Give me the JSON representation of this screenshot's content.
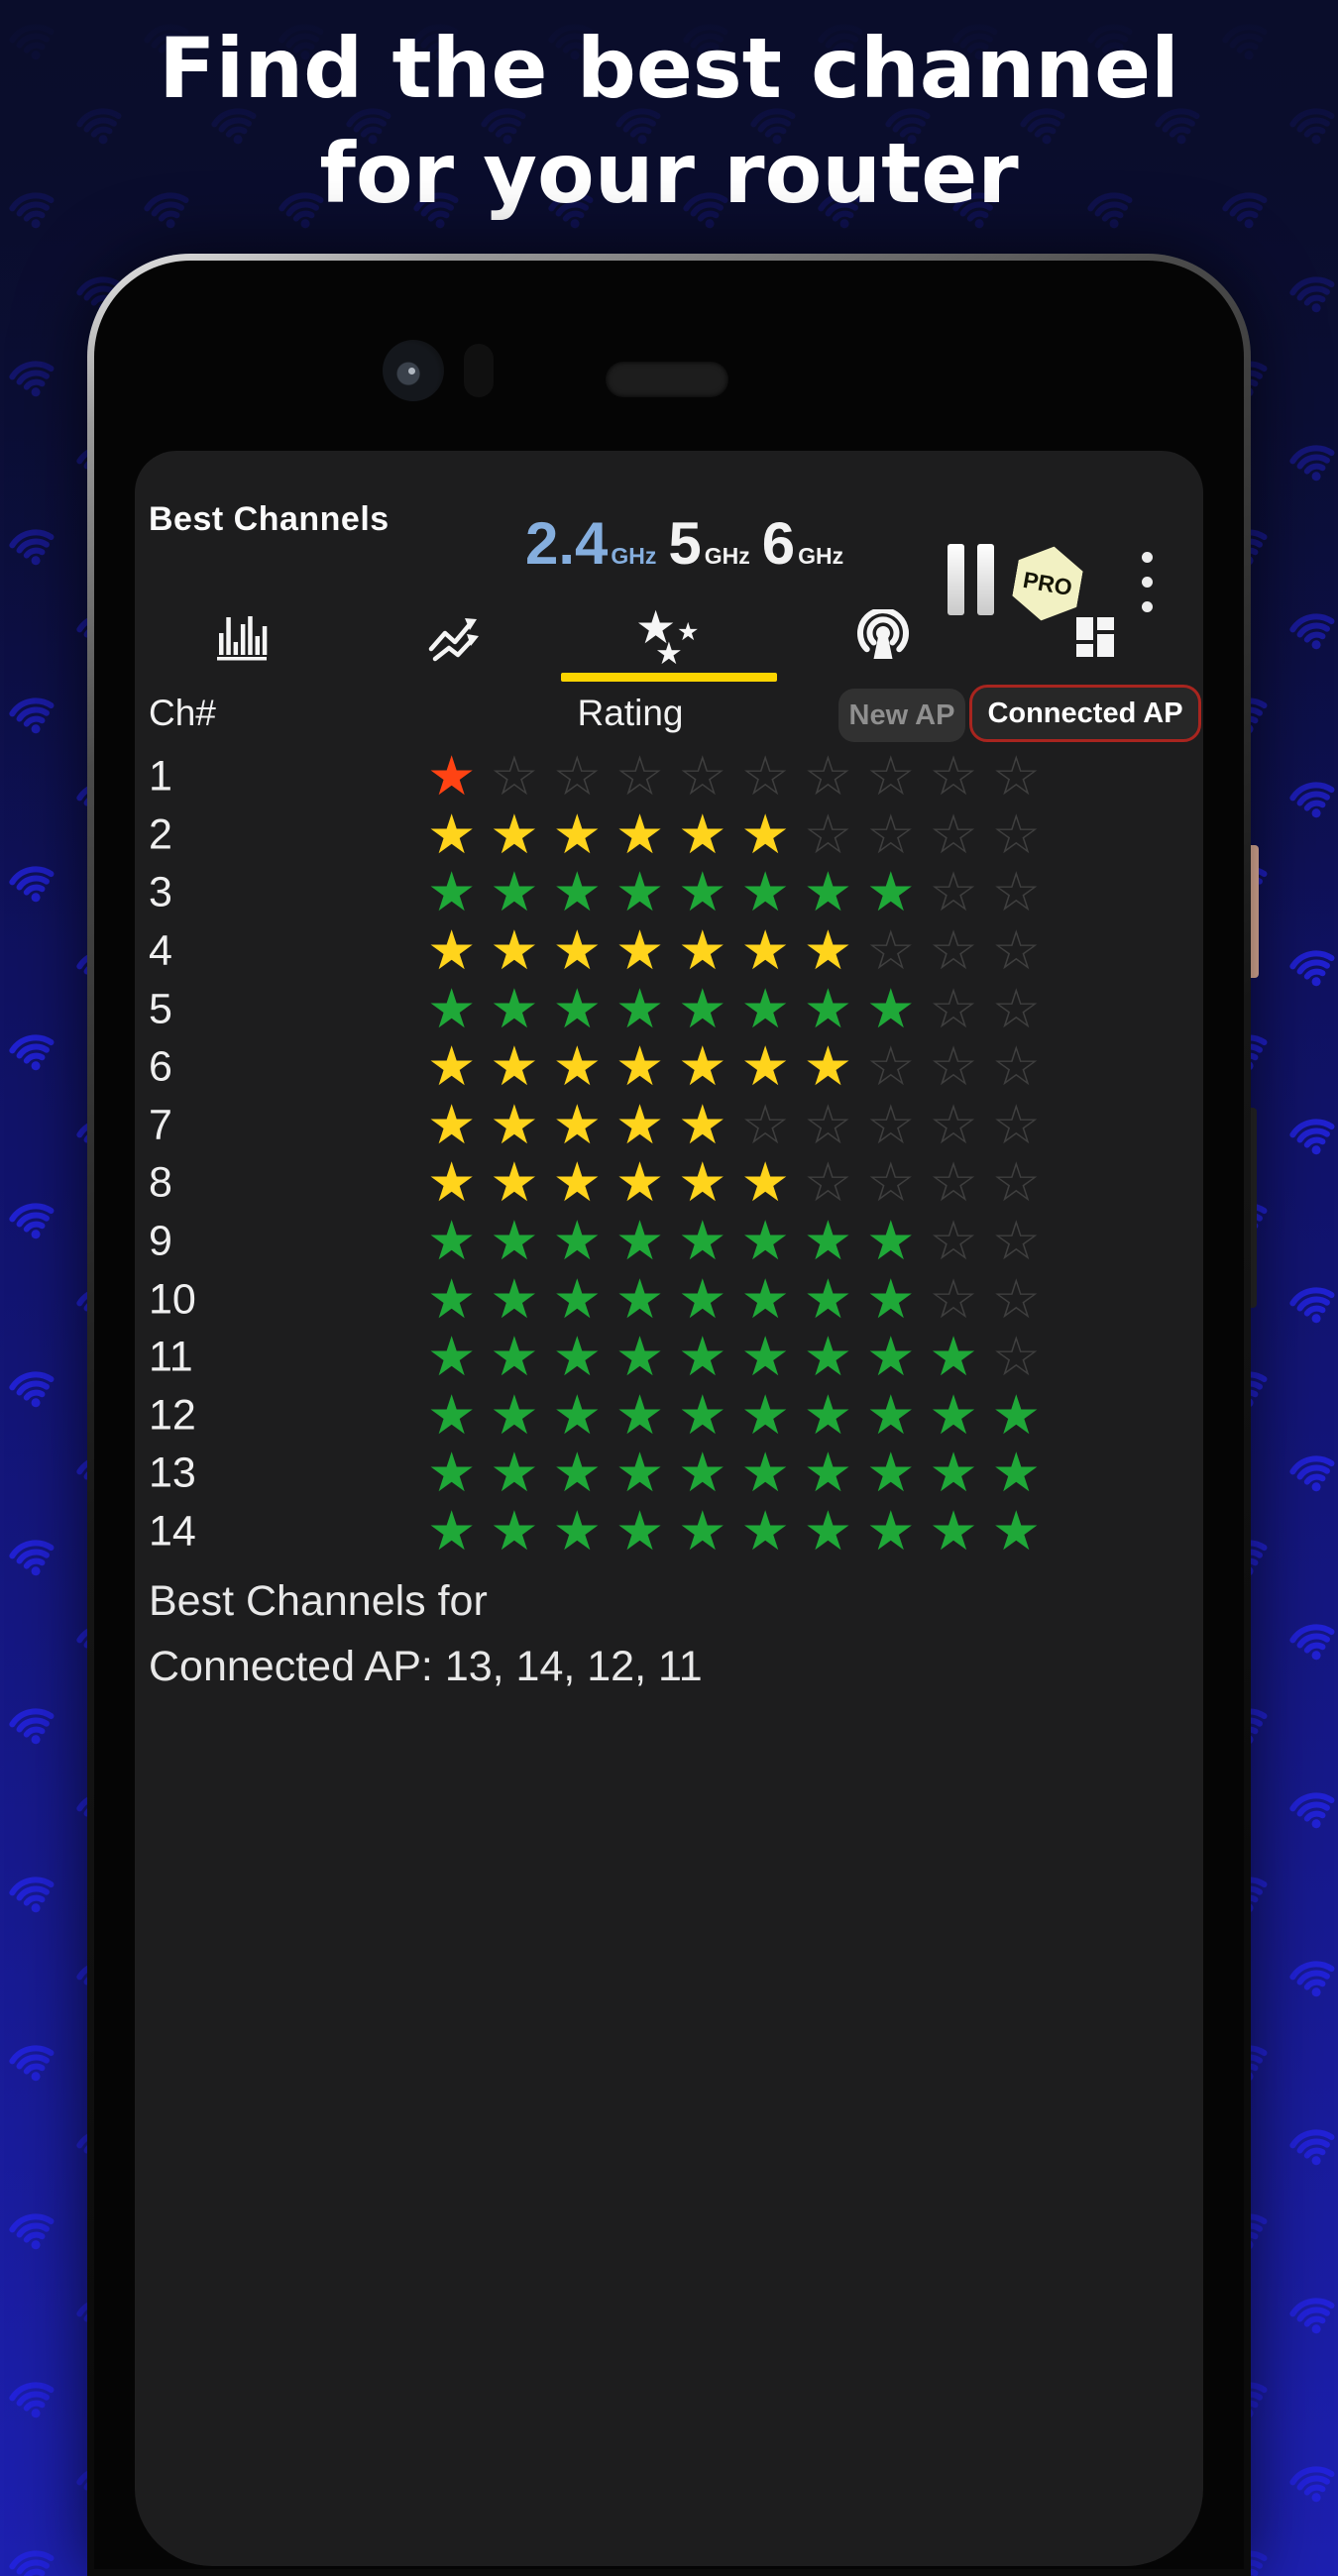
{
  "theme": {
    "bg_top": "#0a0d2b",
    "bg_mid": "#11136b",
    "bg_bottom": "#1d20b0",
    "wifi_icon_color": "#2323e2",
    "accent_yellow": "#fcd400",
    "band_active_color": "#85aede",
    "pro_badge_color": "#f2f1c3",
    "connected_border_color": "#a8251f",
    "power_button_color": "#f6c0a8"
  },
  "hero": {
    "title_line1": "Find the best channel",
    "title_line2": "for your router"
  },
  "app": {
    "title": "Best Channels",
    "bands": [
      {
        "value": "2.4",
        "unit": "GHz",
        "active": true
      },
      {
        "value": "5",
        "unit": "GHz",
        "active": false
      },
      {
        "value": "6",
        "unit": "GHz",
        "active": false
      }
    ],
    "pro_label": "PRO",
    "tabs": [
      {
        "name": "channels-bar-chart",
        "selected": false
      },
      {
        "name": "signal-graph",
        "selected": false
      },
      {
        "name": "channel-rating",
        "selected": true
      },
      {
        "name": "access-points",
        "selected": false
      },
      {
        "name": "channel-width",
        "selected": false
      }
    ],
    "table": {
      "channel_header": "Ch#",
      "rating_header": "Rating",
      "filters": [
        {
          "label": "New AP",
          "active": false
        },
        {
          "label": "Connected AP",
          "active": true
        }
      ]
    },
    "rating_scale": 10,
    "icons": {
      "star_filled": "★",
      "star_empty": "☆",
      "pause": "pause-icon",
      "menu": "kebab-menu-icon"
    },
    "colors": {
      "red": "#ff4313",
      "yellow": "#ffd41c",
      "green": "#1fa838",
      "empty_star": "#3f3f3f"
    },
    "channels": [
      {
        "ch": "1",
        "rating": 1,
        "color": "red"
      },
      {
        "ch": "2",
        "rating": 6,
        "color": "yellow"
      },
      {
        "ch": "3",
        "rating": 8,
        "color": "green"
      },
      {
        "ch": "4",
        "rating": 7,
        "color": "yellow"
      },
      {
        "ch": "5",
        "rating": 8,
        "color": "green"
      },
      {
        "ch": "6",
        "rating": 7,
        "color": "yellow"
      },
      {
        "ch": "7",
        "rating": 5,
        "color": "yellow"
      },
      {
        "ch": "8",
        "rating": 6,
        "color": "yellow"
      },
      {
        "ch": "9",
        "rating": 8,
        "color": "green"
      },
      {
        "ch": "10",
        "rating": 8,
        "color": "green"
      },
      {
        "ch": "11",
        "rating": 9,
        "color": "green"
      },
      {
        "ch": "12",
        "rating": 10,
        "color": "green"
      },
      {
        "ch": "13",
        "rating": 10,
        "color": "green"
      },
      {
        "ch": "14",
        "rating": 10,
        "color": "green"
      }
    ],
    "footer": {
      "line1": "Best Channels for",
      "line2": "Connected AP: 13, 14, 12, 11"
    }
  },
  "chart_data": {
    "type": "bar",
    "title": "Wi-Fi channel rating (stars out of 10)",
    "categories": [
      "1",
      "2",
      "3",
      "4",
      "5",
      "6",
      "7",
      "8",
      "9",
      "10",
      "11",
      "12",
      "13",
      "14"
    ],
    "values": [
      1,
      6,
      8,
      7,
      8,
      7,
      5,
      6,
      8,
      8,
      9,
      10,
      10,
      10
    ],
    "colors": [
      "red",
      "yellow",
      "green",
      "yellow",
      "green",
      "yellow",
      "yellow",
      "yellow",
      "green",
      "green",
      "green",
      "green",
      "green",
      "green"
    ],
    "xlabel": "Ch#",
    "ylabel": "Rating",
    "ylim": [
      0,
      10
    ]
  }
}
